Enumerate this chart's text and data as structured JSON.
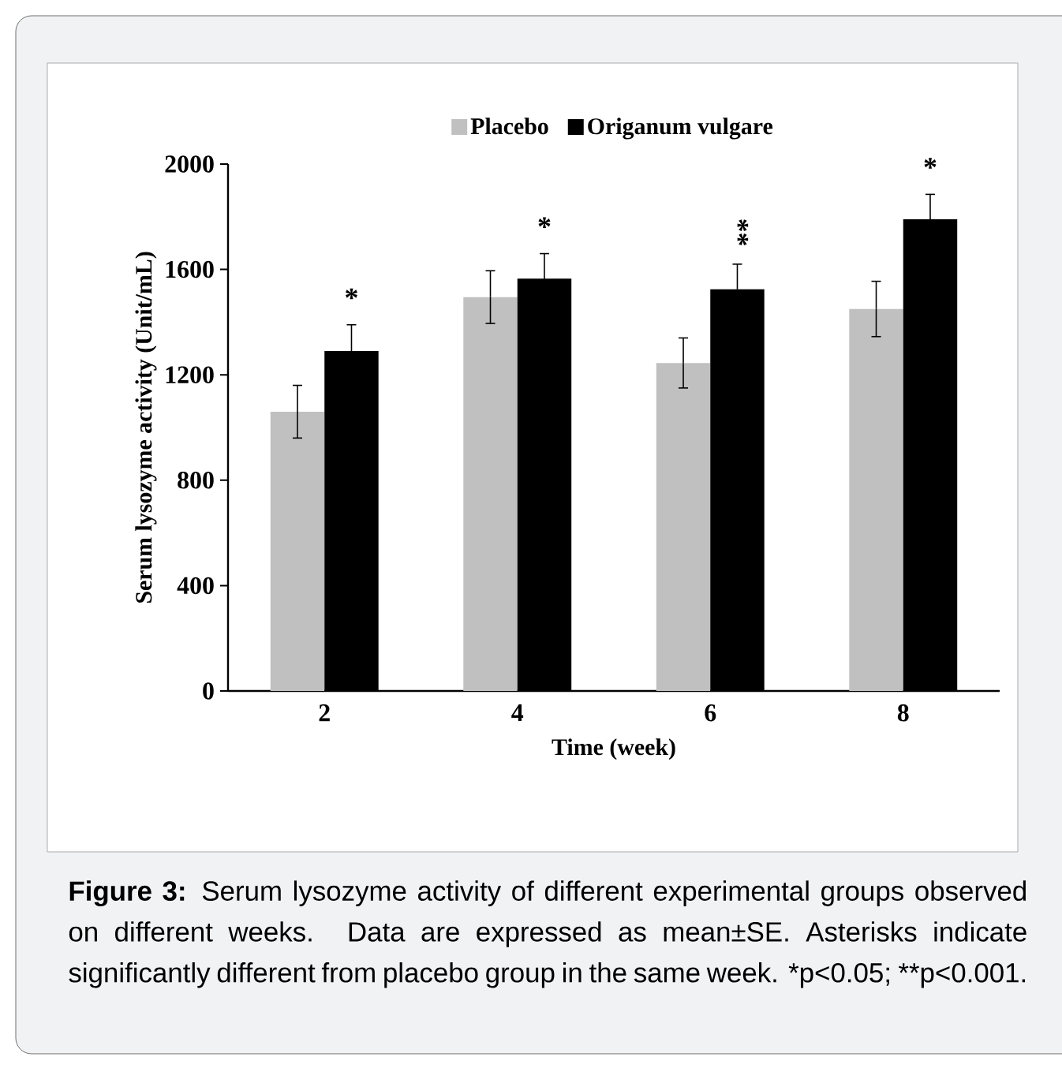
{
  "chart_data": {
    "type": "bar",
    "xlabel": "Time (week)",
    "ylabel": "Serum lysozyme activity (Unit/mL)",
    "categories": [
      "2",
      "4",
      "6",
      "8"
    ],
    "series": [
      {
        "name": "Placebo",
        "color": "#c0c0c0",
        "values": [
          1060,
          1495,
          1245,
          1450
        ],
        "errors": [
          100,
          100,
          95,
          105
        ]
      },
      {
        "name": "Origanum vulgare",
        "color": "#000000",
        "values": [
          1290,
          1565,
          1525,
          1790
        ],
        "errors": [
          100,
          95,
          95,
          95
        ],
        "value_labels": [
          "*",
          "*",
          "**",
          "*"
        ]
      }
    ],
    "ylim": [
      0,
      2000
    ],
    "yticks": [
      0,
      400,
      800,
      1200,
      1600,
      2000
    ],
    "grid": false,
    "legend": "top",
    "annotations": [
      "**Figure 3:** Serum lysozyme activity of different experimental groups observed on different weeks. Data are expressed as mean±SE. Asterisks indicate significantly different from placebo group in the same week. *p<0.05; **p<0.001."
    ]
  }
}
